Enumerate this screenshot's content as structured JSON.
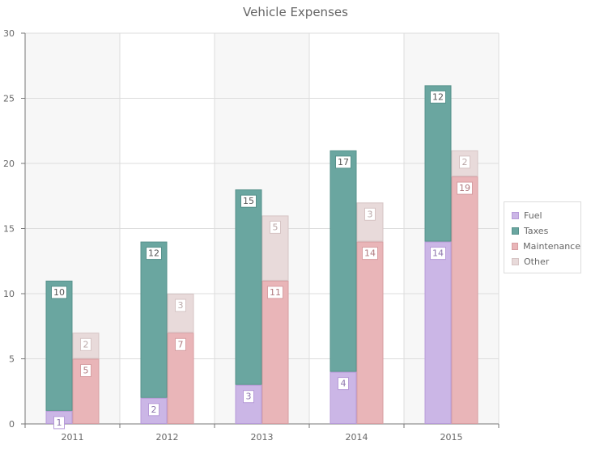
{
  "chart_data": {
    "type": "bar",
    "stacked": true,
    "title": "Vehicle Expenses",
    "xlabel": "",
    "ylabel": "",
    "categories": [
      "2011",
      "2012",
      "2013",
      "2014",
      "2015"
    ],
    "ylim": [
      0,
      30
    ],
    "yticks": [
      0,
      5,
      10,
      15,
      20,
      25,
      30
    ],
    "grid": true,
    "legend_position": "right",
    "stack_groups": [
      {
        "name": "group-1",
        "series": [
          "Fuel",
          "Taxes"
        ]
      },
      {
        "name": "group-2",
        "series": [
          "Maintenance",
          "Other"
        ]
      }
    ],
    "series": [
      {
        "name": "Fuel",
        "stack": "group-1",
        "color": "#cbb6e6",
        "border": "#b79bd8",
        "values": [
          1,
          2,
          3,
          4,
          14
        ]
      },
      {
        "name": "Taxes",
        "stack": "group-1",
        "color": "#6aa6a0",
        "border": "#56918b",
        "values": [
          10,
          12,
          15,
          17,
          12
        ]
      },
      {
        "name": "Maintenance",
        "stack": "group-2",
        "color": "#e9b5b8",
        "border": "#d79ea2",
        "values": [
          5,
          7,
          11,
          14,
          19
        ]
      },
      {
        "name": "Other",
        "stack": "group-2",
        "color": "#e8dada",
        "border": "#d6c4c4",
        "values": [
          2,
          3,
          5,
          3,
          2
        ]
      }
    ],
    "data_labels": true
  }
}
